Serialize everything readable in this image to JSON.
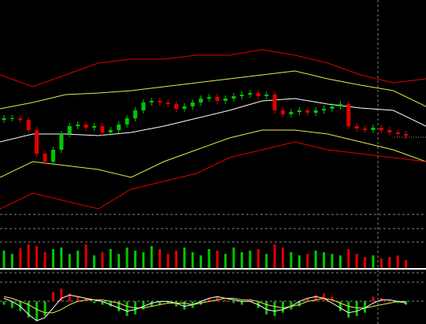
{
  "chart_data": [
    {
      "type": "candlestick",
      "open": [
        118,
        120,
        120,
        118,
        105,
        75,
        65,
        80,
        100,
        110,
        112,
        108,
        110,
        102,
        105,
        112,
        120,
        130,
        140,
        142,
        140,
        138,
        132,
        135,
        140,
        145,
        147,
        142,
        145,
        148,
        150,
        152,
        148,
        150,
        130,
        125,
        128,
        130,
        127,
        130,
        132,
        135,
        138,
        110,
        107,
        105,
        108,
        105,
        102,
        100
      ],
      "high": [
        124,
        124,
        124,
        122,
        109,
        79,
        84,
        104,
        114,
        116,
        116,
        114,
        114,
        109,
        116,
        124,
        134,
        144,
        146,
        146,
        144,
        142,
        139,
        144,
        149,
        151,
        151,
        149,
        152,
        154,
        156,
        156,
        154,
        154,
        134,
        132,
        134,
        134,
        134,
        136,
        139,
        142,
        142,
        114,
        111,
        112,
        112,
        109,
        106,
        104
      ],
      "low": [
        114,
        116,
        114,
        101,
        71,
        61,
        61,
        76,
        96,
        106,
        104,
        104,
        98,
        98,
        101,
        108,
        116,
        126,
        136,
        136,
        134,
        128,
        128,
        131,
        136,
        141,
        138,
        138,
        141,
        144,
        146,
        144,
        144,
        126,
        121,
        121,
        124,
        123,
        123,
        126,
        128,
        131,
        106,
        103,
        101,
        101,
        101,
        98,
        96,
        94
      ],
      "close": [
        120,
        120,
        118,
        105,
        75,
        65,
        80,
        100,
        110,
        112,
        108,
        110,
        102,
        105,
        112,
        120,
        130,
        140,
        142,
        140,
        138,
        132,
        135,
        140,
        145,
        147,
        142,
        145,
        148,
        150,
        152,
        148,
        150,
        130,
        125,
        128,
        130,
        127,
        130,
        132,
        135,
        138,
        110,
        107,
        105,
        108,
        105,
        102,
        100,
        98
      ],
      "up_color": "#00c800",
      "down_color": "#e00000",
      "ylim": [
        0,
        270
      ],
      "series": [
        {
          "color": "#e00000",
          "values": [
            175,
            160,
            175,
            190,
            195,
            195,
            200,
            200,
            207,
            200,
            190,
            175,
            165,
            170
          ]
        },
        {
          "color": "#e8e850",
          "values": [
            132,
            140,
            150,
            152,
            155,
            160,
            165,
            170,
            175,
            180,
            170,
            162,
            155,
            135
          ]
        },
        {
          "color": "#ffffff",
          "values": [
            90,
            100,
            100,
            98,
            102,
            110,
            120,
            130,
            142,
            145,
            138,
            133,
            130,
            110
          ]
        },
        {
          "color": "#e8e850",
          "values": [
            45,
            65,
            60,
            55,
            45,
            65,
            80,
            95,
            105,
            105,
            100,
            90,
            80,
            65
          ]
        },
        {
          "color": "#e00000",
          "values": [
            5,
            25,
            15,
            5,
            30,
            40,
            50,
            70,
            80,
            90,
            80,
            75,
            70,
            65
          ]
        }
      ]
    },
    {
      "type": "bar",
      "values": [
        22,
        18,
        25,
        30,
        28,
        20,
        24,
        26,
        18,
        22,
        30,
        16,
        20,
        24,
        18,
        26,
        22,
        20,
        28,
        24,
        18,
        22,
        26,
        20,
        16,
        24,
        22,
        18,
        26,
        20,
        22,
        24,
        18,
        30,
        26,
        20,
        16,
        18,
        22,
        20,
        18,
        16,
        24,
        18,
        14,
        16,
        12,
        14,
        16,
        10
      ],
      "up_color": "#00c800",
      "down_color": "#e00000",
      "ylim": [
        0,
        40
      ]
    },
    {
      "type": "macd",
      "values": [
        -2,
        -4,
        -6,
        -10,
        -12,
        -9,
        6,
        8,
        5,
        3,
        2,
        -1,
        -2,
        -3,
        -6,
        -9,
        -8,
        -5,
        -3,
        -2,
        -1,
        -3,
        -5,
        -4,
        -2,
        2,
        3,
        1,
        -1,
        -2,
        1,
        -4,
        -8,
        -9,
        -7,
        -5,
        -3,
        2,
        4,
        5,
        3,
        -6,
        -10,
        -9,
        -7,
        3,
        2,
        1,
        -1,
        -2
      ],
      "pos_color": "#e00000",
      "neg_color": "#00c800",
      "ylim": [
        -14,
        11
      ],
      "series": [
        {
          "color": "#ffffff",
          "values": [
            2,
            0,
            -3,
            -8,
            -12,
            -10,
            -4,
            2,
            4,
            3,
            2,
            1,
            0,
            -2,
            -4,
            -6,
            -5,
            -3,
            -1,
            0,
            0,
            -1,
            -3,
            -2,
            0,
            2,
            3,
            2,
            1,
            0,
            0,
            -2,
            -5,
            -6,
            -5,
            -3,
            0,
            2,
            3,
            2,
            -1,
            -4,
            -7,
            -6,
            -4,
            -1,
            1,
            1,
            0,
            -1
          ]
        },
        {
          "color": "#e8e850",
          "values": [
            3,
            2,
            0,
            -2,
            -5,
            -7,
            -7,
            -5,
            -2,
            0,
            1,
            1,
            1,
            0,
            -1,
            -3,
            -4,
            -4,
            -3,
            -2,
            -1,
            -1,
            -1,
            -2,
            -1,
            0,
            1,
            2,
            2,
            1,
            1,
            0,
            -2,
            -3,
            -4,
            -3,
            -2,
            0,
            1,
            2,
            1,
            -1,
            -3,
            -4,
            -4,
            -3,
            -2,
            -1,
            0,
            0
          ]
        }
      ]
    }
  ]
}
